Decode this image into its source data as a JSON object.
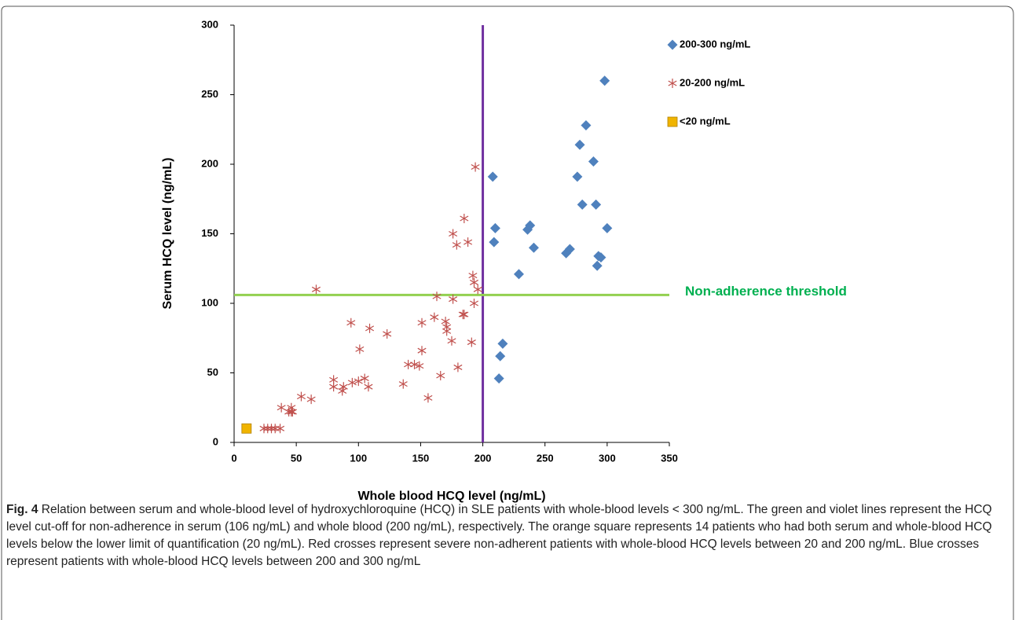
{
  "chart_data": {
    "type": "scatter",
    "xlabel": "Whole blood HCQ level (ng/mL)",
    "ylabel": "Serum HCQ level (ng/mL)",
    "xlim": [
      0,
      350
    ],
    "xticks": [
      0,
      50,
      100,
      150,
      200,
      250,
      300,
      350
    ],
    "ylim": [
      0,
      300
    ],
    "yticks": [
      0,
      50,
      100,
      150,
      200,
      250,
      300
    ],
    "legend": "upper right",
    "vlines": [
      {
        "value": 200,
        "color": "#7030a0"
      }
    ],
    "hlines": [
      {
        "value": 106,
        "color": "#92d050",
        "label": "Non-adherence threshold",
        "label_color": "#00b050"
      }
    ],
    "series": [
      {
        "name": "200-300 ng/mL",
        "color": "#4f81bd",
        "marker": "diamond",
        "x": [
          208,
          210,
          209,
          229,
          236,
          238,
          241,
          267,
          270,
          276,
          278,
          280,
          283,
          289,
          291,
          292,
          293,
          295,
          298,
          300,
          213,
          214,
          216
        ],
        "values": [
          191,
          154,
          144,
          121,
          153,
          156,
          140,
          136,
          139,
          191,
          214,
          171,
          228,
          202,
          171,
          127,
          134,
          133,
          260,
          154,
          46,
          62,
          71
        ]
      },
      {
        "name": "20-200 ng/mL",
        "color": "#c0504d",
        "marker": "asterisk",
        "x": [
          24,
          27,
          30,
          33,
          37,
          38,
          44,
          46,
          46,
          47,
          54,
          62,
          66,
          80,
          80,
          87,
          88,
          94,
          95,
          100,
          101,
          105,
          108,
          109,
          123,
          136,
          140,
          145,
          149,
          151,
          151,
          156,
          161,
          163,
          166,
          170,
          171,
          171,
          175,
          176,
          176,
          179,
          180,
          184,
          185,
          185,
          188,
          191,
          192,
          193,
          193,
          194,
          196
        ],
        "values": [
          10,
          10,
          10,
          10,
          10,
          25,
          22,
          22,
          25,
          22,
          33,
          31,
          110,
          45,
          40,
          37,
          40,
          86,
          43,
          44,
          67,
          46,
          40,
          82,
          78,
          42,
          56,
          56,
          55,
          86,
          66,
          32,
          90,
          105,
          48,
          87,
          83,
          80,
          73,
          103,
          150,
          142,
          54,
          92,
          92,
          161,
          144,
          72,
          120,
          115,
          100,
          198,
          110
        ]
      },
      {
        "name": "<20 ng/mL",
        "color": "#f0b400",
        "marker": "square",
        "x": [
          10
        ],
        "values": [
          10
        ]
      }
    ]
  },
  "caption": {
    "label": "Fig. 4",
    "text": "Relation between serum and whole-blood level of hydroxychloroquine (HCQ) in SLE patients with whole-blood levels < 300 ng/mL. The green and violet lines represent the HCQ level cut-off for non-adherence in serum (106 ng/mL) and whole blood (200 ng/mL), respectively. The orange square represents 14 patients who had both serum and whole-blood HCQ levels below the lower limit of quantification (20 ng/mL). Red crosses represent severe non-adherent patients with whole-blood HCQ levels between 20 and 200 ng/mL. Blue crosses represent patients with whole-blood HCQ levels between 200 and 300 ng/mL"
  }
}
